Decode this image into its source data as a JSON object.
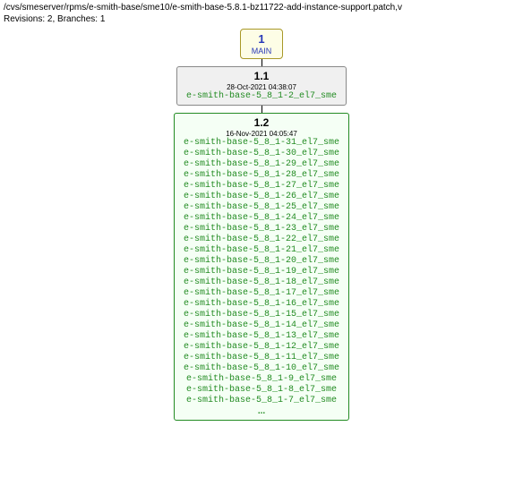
{
  "header": {
    "path": "/cvs/smeserver/rpms/e-smith-base/sme10/e-smith-base-5.8.1-bz11722-add-instance-support.patch,v",
    "meta": "Revisions: 2, Branches: 1"
  },
  "main": {
    "num": "1",
    "label": "MAIN",
    "bg": "#fdfde6",
    "border": "#a89828",
    "text_color": "#2838b8"
  },
  "rev11": {
    "version": "1.1",
    "date": "28-Oct-2021 04:38:07",
    "tags": [
      "e-smith-base-5_8_1-2_el7_sme"
    ],
    "bg": "#f0f0f0",
    "border": "#888888",
    "tag_color": "#228b22"
  },
  "rev12": {
    "version": "1.2",
    "date": "16-Nov-2021 04:05:47",
    "tags": [
      "e-smith-base-5_8_1-31_el7_sme",
      "e-smith-base-5_8_1-30_el7_sme",
      "e-smith-base-5_8_1-29_el7_sme",
      "e-smith-base-5_8_1-28_el7_sme",
      "e-smith-base-5_8_1-27_el7_sme",
      "e-smith-base-5_8_1-26_el7_sme",
      "e-smith-base-5_8_1-25_el7_sme",
      "e-smith-base-5_8_1-24_el7_sme",
      "e-smith-base-5_8_1-23_el7_sme",
      "e-smith-base-5_8_1-22_el7_sme",
      "e-smith-base-5_8_1-21_el7_sme",
      "e-smith-base-5_8_1-20_el7_sme",
      "e-smith-base-5_8_1-19_el7_sme",
      "e-smith-base-5_8_1-18_el7_sme",
      "e-smith-base-5_8_1-17_el7_sme",
      "e-smith-base-5_8_1-16_el7_sme",
      "e-smith-base-5_8_1-15_el7_sme",
      "e-smith-base-5_8_1-14_el7_sme",
      "e-smith-base-5_8_1-13_el7_sme",
      "e-smith-base-5_8_1-12_el7_sme",
      "e-smith-base-5_8_1-11_el7_sme",
      "e-smith-base-5_8_1-10_el7_sme",
      "e-smith-base-5_8_1-9_el7_sme",
      "e-smith-base-5_8_1-8_el7_sme",
      "e-smith-base-5_8_1-7_el7_sme"
    ],
    "ellipsis": "...",
    "bg": "#f5fff5",
    "border": "#228b22",
    "tag_color": "#228b22"
  }
}
